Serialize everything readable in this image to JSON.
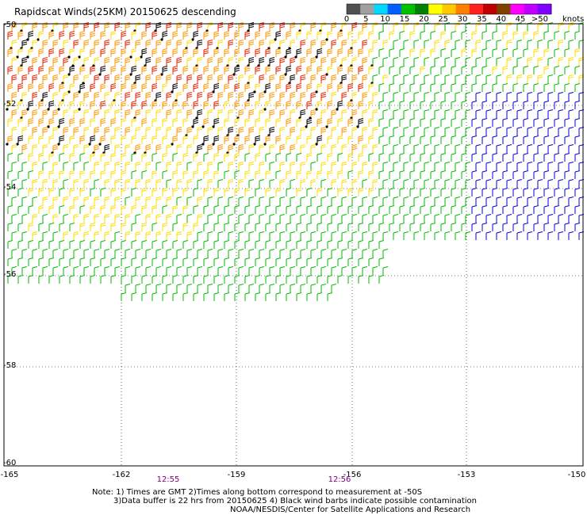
{
  "title": "Rapidscat Winds(25KM) 20150625 descending",
  "legend": {
    "colors": [
      "#505050",
      "#a0a0a0",
      "#00d8ff",
      "#0060ff",
      "#00c000",
      "#008000",
      "#ffff00",
      "#ffc800",
      "#ff8000",
      "#ff2020",
      "#c00000",
      "#804000",
      "#ff00ff",
      "#c000ff",
      "#8000ff"
    ],
    "labels": [
      "0",
      "5",
      "10",
      "15",
      "20",
      "25",
      "30",
      "35",
      "40",
      "45",
      ">50"
    ],
    "unit": "knots"
  },
  "axes": {
    "lat_labels": [
      "-50",
      "-52",
      "-54",
      "-56",
      "-58",
      "-60"
    ],
    "lon_labels": [
      "-165",
      "-162",
      "-159",
      "-156",
      "-153",
      "-150"
    ]
  },
  "times": [
    "12:55",
    "12:56"
  ],
  "notes": [
    "Note: 1) Times are GMT 2)Times along bottom correspond to measurement at -50S",
    "3)Data buffer is 22 hrs from 20150625 4) Black wind barbs indicate possible contamination",
    "NOAA/NESDIS/Center for Satellite Applications and Research"
  ],
  "palette": {
    "yellow": "#ffdd00",
    "orange": "#ff9900",
    "red": "#ee2200",
    "green": "#00bb00",
    "blue": "#0000dd",
    "black": "#000000",
    "magenta": "#ff00ff"
  }
}
